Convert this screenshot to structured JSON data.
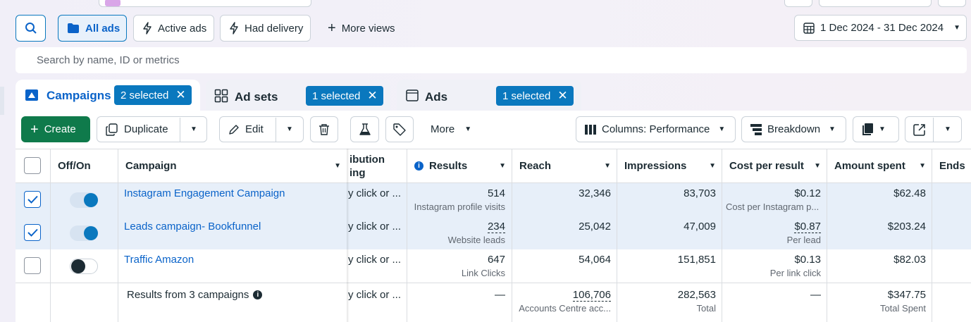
{
  "toolbar": {
    "views": [
      {
        "label": "All ads",
        "icon": "folder-icon",
        "active": true
      },
      {
        "label": "Active ads",
        "icon": "lightning-icon"
      },
      {
        "label": "Had delivery",
        "icon": "lightning-icon"
      },
      {
        "label": "More views",
        "icon": "plus-icon"
      }
    ],
    "date_range": "1 Dec 2024 - 31 Dec 2024"
  },
  "search": {
    "placeholder": "Search by name, ID or metrics"
  },
  "tabs": [
    {
      "label": "Campaigns",
      "selected": "2 selected",
      "icon": "campaign-flag-icon",
      "active": true
    },
    {
      "label": "Ad sets",
      "selected": "1 selected",
      "icon": "grid-icon"
    },
    {
      "label": "Ads",
      "selected": "1 selected",
      "icon": "ad-window-icon"
    }
  ],
  "actions": {
    "create": "Create",
    "duplicate": "Duplicate",
    "edit": "Edit",
    "more": "More",
    "columns": "Columns: Performance",
    "breakdown": "Breakdown"
  },
  "table": {
    "headers": {
      "off_on": "Off/On",
      "campaign": "Campaign",
      "attribution_line1": "ibution",
      "attribution_line2": "ing",
      "results": "Results",
      "reach": "Reach",
      "impressions": "Impressions",
      "cost_per_result": "Cost per result",
      "amount_spent": "Amount spent",
      "ends": "Ends"
    },
    "rows": [
      {
        "checked": true,
        "on": true,
        "campaign": "Instagram Engagement Campaign",
        "attribution": "y click or ...",
        "results": "514",
        "results_sub": "Instagram profile visits",
        "reach": "32,346",
        "impressions": "83,703",
        "cost": "$0.12",
        "cost_sub": "Cost per Instagram p...",
        "spent": "$62.48"
      },
      {
        "checked": true,
        "on": true,
        "campaign": "Leads campaign- Bookfunnel",
        "attribution": "y click or ...",
        "results": "234",
        "results_sub": "Website leads",
        "reach": "25,042",
        "impressions": "47,009",
        "cost": "$0.87",
        "cost_sub": "Per lead",
        "spent": "$203.24"
      },
      {
        "checked": false,
        "on": false,
        "campaign": "Traffic Amazon",
        "attribution": "y click or ...",
        "results": "647",
        "results_sub": "Link Clicks",
        "reach": "54,064",
        "impressions": "151,851",
        "cost": "$0.13",
        "cost_sub": "Per link click",
        "spent": "$82.03"
      }
    ],
    "summary": {
      "label": "Results from 3 campaigns",
      "attribution": "y click or ...",
      "results": "—",
      "reach": "106,706",
      "reach_sub": "Accounts Centre acc...",
      "impressions": "282,563",
      "impressions_sub": "Total",
      "cost": "—",
      "spent": "$347.75",
      "spent_sub": "Total Spent"
    }
  },
  "colors": {
    "accent": "#0a78be",
    "create_green": "#0f7a4b",
    "link": "#0a63c9",
    "selected_row": "#e7eff9"
  }
}
